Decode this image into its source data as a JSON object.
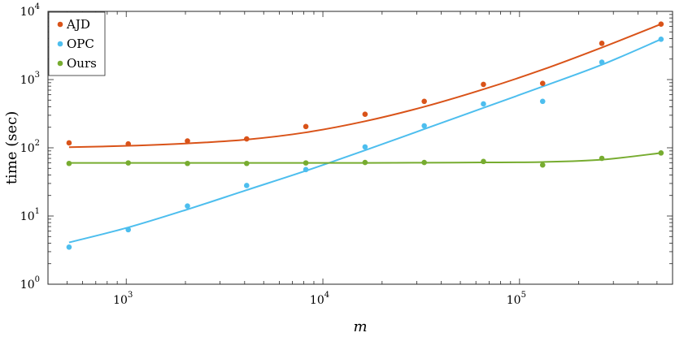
{
  "chart_data": {
    "type": "scatter",
    "title": "",
    "xlabel": "m",
    "ylabel": "time (sec)",
    "xscale": "log",
    "yscale": "log",
    "xlim": [
      400,
      600000
    ],
    "ylim": [
      1,
      10000
    ],
    "grid": false,
    "legend_position": "top-left",
    "x_ticks": [
      {
        "base": "10",
        "exp": "3",
        "value": 1000
      },
      {
        "base": "10",
        "exp": "4",
        "value": 10000
      },
      {
        "base": "10",
        "exp": "5",
        "value": 100000
      }
    ],
    "y_ticks": [
      {
        "base": "10",
        "exp": "0",
        "value": 1
      },
      {
        "base": "10",
        "exp": "1",
        "value": 10
      },
      {
        "base": "10",
        "exp": "2",
        "value": 100
      },
      {
        "base": "10",
        "exp": "3",
        "value": 1000
      },
      {
        "base": "10",
        "exp": "4",
        "value": 10000
      }
    ],
    "x": [
      512,
      1024,
      2048,
      4096,
      8192,
      16384,
      32768,
      65536,
      131072,
      262144,
      524288
    ],
    "series": [
      {
        "name": "AJD",
        "color": "#d95319",
        "points": [
          118,
          114,
          126,
          135,
          205,
          310,
          480,
          850,
          880,
          3400,
          6500
        ],
        "fit": [
          102,
          107,
          116,
          132,
          168,
          245,
          400,
          720,
          1400,
          2950,
          6500
        ]
      },
      {
        "name": "OPC",
        "color": "#4dbeee",
        "points": [
          3.5,
          6.3,
          14,
          28,
          48,
          103,
          210,
          440,
          480,
          1800,
          3900
        ],
        "fit": [
          4.1,
          6.8,
          12.5,
          24,
          46,
          92,
          188,
          385,
          790,
          1650,
          3900
        ]
      },
      {
        "name": "Ours",
        "color": "#77ac30",
        "points": [
          59,
          60,
          59,
          59,
          60,
          61,
          61,
          63,
          56,
          70,
          84
        ],
        "fit": [
          60,
          60,
          60,
          60,
          60,
          60,
          60.5,
          61,
          62,
          67,
          84
        ]
      }
    ]
  }
}
